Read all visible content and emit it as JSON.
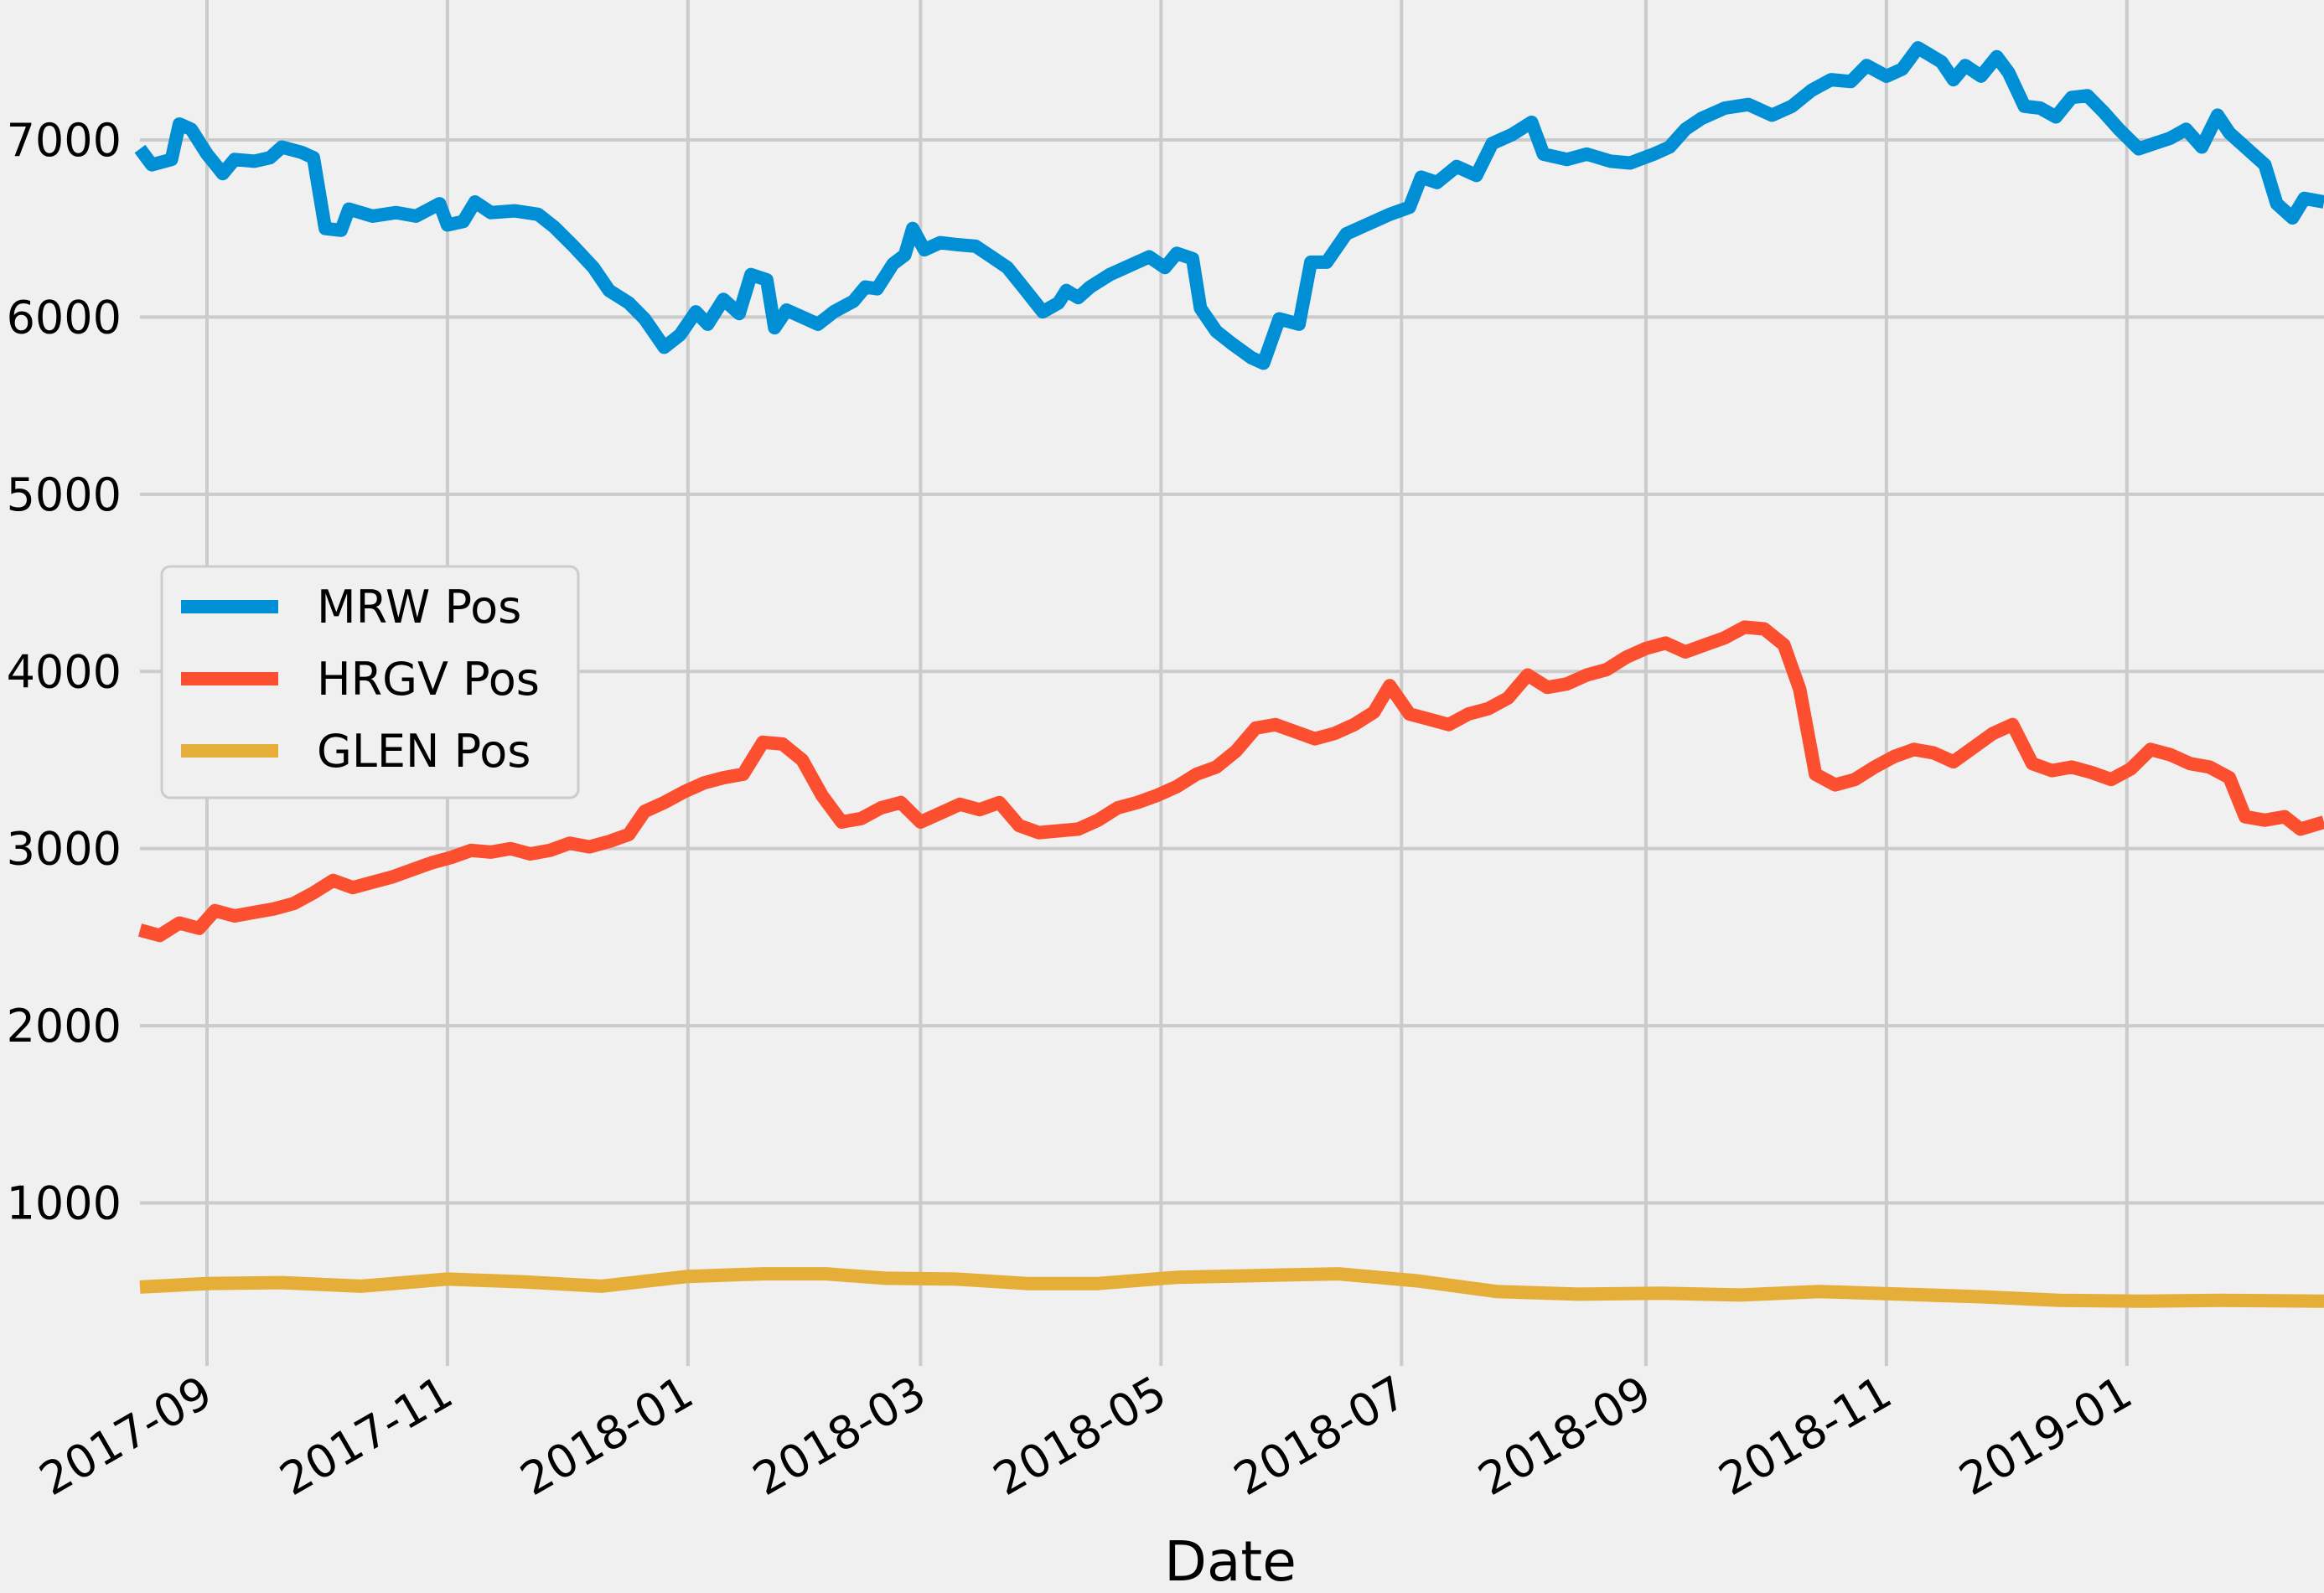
{
  "chart_data": {
    "type": "line",
    "xlabel": "Date",
    "ylabel": "",
    "ylim": [
      80,
      7790
    ],
    "xlim": [
      "2017-08-15",
      "2019-02-20"
    ],
    "grid": true,
    "legend_position": "center-left",
    "x_ticks": [
      "2017-09",
      "2017-11",
      "2018-01",
      "2018-03",
      "2018-05",
      "2018-07",
      "2018-09",
      "2018-11",
      "2019-01"
    ],
    "y_ticks": [
      1000,
      2000,
      3000,
      4000,
      5000,
      6000,
      7000
    ],
    "series": [
      {
        "name": "MRW Pos",
        "color": "#008fd5",
        "points": [
          [
            "2017-08-15",
            6950
          ],
          [
            "2017-08-18",
            6860
          ],
          [
            "2017-08-23",
            6890
          ],
          [
            "2017-08-25",
            7090
          ],
          [
            "2017-08-28",
            7060
          ],
          [
            "2017-09-01",
            6920
          ],
          [
            "2017-09-05",
            6810
          ],
          [
            "2017-09-08",
            6890
          ],
          [
            "2017-09-13",
            6880
          ],
          [
            "2017-09-17",
            6900
          ],
          [
            "2017-09-20",
            6960
          ],
          [
            "2017-09-25",
            6930
          ],
          [
            "2017-09-28",
            6900
          ],
          [
            "2017-10-01",
            6500
          ],
          [
            "2017-10-05",
            6490
          ],
          [
            "2017-10-07",
            6610
          ],
          [
            "2017-10-13",
            6570
          ],
          [
            "2017-10-19",
            6590
          ],
          [
            "2017-10-24",
            6570
          ],
          [
            "2017-10-30",
            6640
          ],
          [
            "2017-11-01",
            6520
          ],
          [
            "2017-11-05",
            6540
          ],
          [
            "2017-11-08",
            6650
          ],
          [
            "2017-11-12",
            6590
          ],
          [
            "2017-11-18",
            6600
          ],
          [
            "2017-11-24",
            6580
          ],
          [
            "2017-11-28",
            6510
          ],
          [
            "2017-12-03",
            6400
          ],
          [
            "2017-12-08",
            6280
          ],
          [
            "2017-12-12",
            6150
          ],
          [
            "2017-12-17",
            6080
          ],
          [
            "2017-12-21",
            5990
          ],
          [
            "2017-12-26",
            5830
          ],
          [
            "2017-12-30",
            5900
          ],
          [
            "2018-01-03",
            6030
          ],
          [
            "2018-01-06",
            5960
          ],
          [
            "2018-01-10",
            6100
          ],
          [
            "2018-01-14",
            6020
          ],
          [
            "2018-01-17",
            6240
          ],
          [
            "2018-01-21",
            6210
          ],
          [
            "2018-01-23",
            5940
          ],
          [
            "2018-01-26",
            6040
          ],
          [
            "2018-01-30",
            6000
          ],
          [
            "2018-02-03",
            5960
          ],
          [
            "2018-02-07",
            6030
          ],
          [
            "2018-02-12",
            6090
          ],
          [
            "2018-02-15",
            6170
          ],
          [
            "2018-02-18",
            6160
          ],
          [
            "2018-02-22",
            6300
          ],
          [
            "2018-02-25",
            6350
          ],
          [
            "2018-02-27",
            6500
          ],
          [
            "2018-03-02",
            6380
          ],
          [
            "2018-03-06",
            6420
          ],
          [
            "2018-03-10",
            6410
          ],
          [
            "2018-03-15",
            6400
          ],
          [
            "2018-03-19",
            6340
          ],
          [
            "2018-03-23",
            6280
          ],
          [
            "2018-03-27",
            6170
          ],
          [
            "2018-04-01",
            6030
          ],
          [
            "2018-04-05",
            6080
          ],
          [
            "2018-04-07",
            6150
          ],
          [
            "2018-04-10",
            6110
          ],
          [
            "2018-04-13",
            6170
          ],
          [
            "2018-04-18",
            6240
          ],
          [
            "2018-04-23",
            6290
          ],
          [
            "2018-04-28",
            6340
          ],
          [
            "2018-05-02",
            6280
          ],
          [
            "2018-05-05",
            6360
          ],
          [
            "2018-05-09",
            6330
          ],
          [
            "2018-05-11",
            6050
          ],
          [
            "2018-05-15",
            5920
          ],
          [
            "2018-05-19",
            5850
          ],
          [
            "2018-05-24",
            5770
          ],
          [
            "2018-05-27",
            5740
          ],
          [
            "2018-05-31",
            5990
          ],
          [
            "2018-06-05",
            5960
          ],
          [
            "2018-06-08",
            6310
          ],
          [
            "2018-06-12",
            6310
          ],
          [
            "2018-06-17",
            6470
          ],
          [
            "2018-06-22",
            6520
          ],
          [
            "2018-06-28",
            6580
          ],
          [
            "2018-07-03",
            6620
          ],
          [
            "2018-07-06",
            6790
          ],
          [
            "2018-07-10",
            6760
          ],
          [
            "2018-07-15",
            6850
          ],
          [
            "2018-07-20",
            6800
          ],
          [
            "2018-07-24",
            6980
          ],
          [
            "2018-07-29",
            7030
          ],
          [
            "2018-08-03",
            7100
          ],
          [
            "2018-08-06",
            6920
          ],
          [
            "2018-08-12",
            6890
          ],
          [
            "2018-08-17",
            6920
          ],
          [
            "2018-08-23",
            6880
          ],
          [
            "2018-08-28",
            6870
          ],
          [
            "2018-09-03",
            6920
          ],
          [
            "2018-09-07",
            6960
          ],
          [
            "2018-09-11",
            7060
          ],
          [
            "2018-09-15",
            7120
          ],
          [
            "2018-09-21",
            7180
          ],
          [
            "2018-09-27",
            7200
          ],
          [
            "2018-10-03",
            7140
          ],
          [
            "2018-10-08",
            7190
          ],
          [
            "2018-10-13",
            7280
          ],
          [
            "2018-10-18",
            7340
          ],
          [
            "2018-10-23",
            7330
          ],
          [
            "2018-10-27",
            7420
          ],
          [
            "2018-11-01",
            7360
          ],
          [
            "2018-11-05",
            7400
          ],
          [
            "2018-11-09",
            7520
          ],
          [
            "2018-11-12",
            7480
          ],
          [
            "2018-11-15",
            7440
          ],
          [
            "2018-11-18",
            7340
          ],
          [
            "2018-11-21",
            7420
          ],
          [
            "2018-11-25",
            7360
          ],
          [
            "2018-11-29",
            7470
          ],
          [
            "2018-12-02",
            7380
          ],
          [
            "2018-12-06",
            7190
          ],
          [
            "2018-12-10",
            7180
          ],
          [
            "2018-12-14",
            7130
          ],
          [
            "2018-12-18",
            7240
          ],
          [
            "2018-12-22",
            7250
          ],
          [
            "2018-12-26",
            7160
          ],
          [
            "2018-12-30",
            7060
          ],
          [
            "2019-01-04",
            6950
          ],
          [
            "2019-01-08",
            6980
          ],
          [
            "2019-01-12",
            7010
          ],
          [
            "2019-01-16",
            7060
          ],
          [
            "2019-01-20",
            6960
          ],
          [
            "2019-01-24",
            7140
          ],
          [
            "2019-01-27",
            7040
          ],
          [
            "2019-02-01",
            6940
          ],
          [
            "2019-02-05",
            6860
          ],
          [
            "2019-02-08",
            6640
          ],
          [
            "2019-02-12",
            6560
          ],
          [
            "2019-02-15",
            6670
          ],
          [
            "2019-02-20",
            6650
          ]
        ]
      },
      {
        "name": "HRGV Pos",
        "color": "#fc4f30",
        "points": [
          [
            "2017-08-15",
            2540
          ],
          [
            "2017-08-20",
            2510
          ],
          [
            "2017-08-25",
            2580
          ],
          [
            "2017-08-30",
            2550
          ],
          [
            "2017-09-03",
            2650
          ],
          [
            "2017-09-08",
            2620
          ],
          [
            "2017-09-13",
            2640
          ],
          [
            "2017-09-18",
            2660
          ],
          [
            "2017-09-23",
            2690
          ],
          [
            "2017-09-28",
            2750
          ],
          [
            "2017-10-03",
            2820
          ],
          [
            "2017-10-08",
            2780
          ],
          [
            "2017-10-13",
            2810
          ],
          [
            "2017-10-18",
            2840
          ],
          [
            "2017-10-23",
            2880
          ],
          [
            "2017-10-28",
            2920
          ],
          [
            "2017-11-02",
            2950
          ],
          [
            "2017-11-07",
            2990
          ],
          [
            "2017-11-12",
            2980
          ],
          [
            "2017-11-17",
            3000
          ],
          [
            "2017-11-22",
            2970
          ],
          [
            "2017-11-27",
            2990
          ],
          [
            "2017-12-02",
            3030
          ],
          [
            "2017-12-07",
            3010
          ],
          [
            "2017-12-12",
            3040
          ],
          [
            "2017-12-17",
            3080
          ],
          [
            "2017-12-21",
            3210
          ],
          [
            "2017-12-26",
            3260
          ],
          [
            "2017-12-31",
            3320
          ],
          [
            "2018-01-05",
            3370
          ],
          [
            "2018-01-10",
            3400
          ],
          [
            "2018-01-15",
            3420
          ],
          [
            "2018-01-20",
            3600
          ],
          [
            "2018-01-25",
            3590
          ],
          [
            "2018-01-30",
            3500
          ],
          [
            "2018-02-04",
            3300
          ],
          [
            "2018-02-09",
            3150
          ],
          [
            "2018-02-14",
            3170
          ],
          [
            "2018-02-19",
            3230
          ],
          [
            "2018-02-24",
            3260
          ],
          [
            "2018-03-01",
            3150
          ],
          [
            "2018-03-06",
            3200
          ],
          [
            "2018-03-11",
            3250
          ],
          [
            "2018-03-16",
            3220
          ],
          [
            "2018-03-21",
            3260
          ],
          [
            "2018-03-26",
            3130
          ],
          [
            "2018-03-31",
            3090
          ],
          [
            "2018-04-05",
            3100
          ],
          [
            "2018-04-10",
            3110
          ],
          [
            "2018-04-15",
            3160
          ],
          [
            "2018-04-20",
            3230
          ],
          [
            "2018-04-25",
            3260
          ],
          [
            "2018-04-30",
            3300
          ],
          [
            "2018-05-05",
            3350
          ],
          [
            "2018-05-10",
            3420
          ],
          [
            "2018-05-15",
            3460
          ],
          [
            "2018-05-20",
            3550
          ],
          [
            "2018-05-25",
            3680
          ],
          [
            "2018-05-30",
            3700
          ],
          [
            "2018-06-04",
            3660
          ],
          [
            "2018-06-09",
            3620
          ],
          [
            "2018-06-14",
            3650
          ],
          [
            "2018-06-19",
            3700
          ],
          [
            "2018-06-24",
            3770
          ],
          [
            "2018-06-28",
            3920
          ],
          [
            "2018-07-03",
            3760
          ],
          [
            "2018-07-08",
            3730
          ],
          [
            "2018-07-13",
            3700
          ],
          [
            "2018-07-18",
            3760
          ],
          [
            "2018-07-23",
            3790
          ],
          [
            "2018-07-28",
            3850
          ],
          [
            "2018-08-02",
            3980
          ],
          [
            "2018-08-07",
            3910
          ],
          [
            "2018-08-12",
            3930
          ],
          [
            "2018-08-17",
            3980
          ],
          [
            "2018-08-22",
            4010
          ],
          [
            "2018-08-27",
            4080
          ],
          [
            "2018-09-01",
            4130
          ],
          [
            "2018-09-06",
            4160
          ],
          [
            "2018-09-11",
            4110
          ],
          [
            "2018-09-16",
            4150
          ],
          [
            "2018-09-21",
            4190
          ],
          [
            "2018-09-26",
            4250
          ],
          [
            "2018-10-01",
            4240
          ],
          [
            "2018-10-06",
            4150
          ],
          [
            "2018-10-10",
            3900
          ],
          [
            "2018-10-14",
            3420
          ],
          [
            "2018-10-19",
            3360
          ],
          [
            "2018-10-24",
            3390
          ],
          [
            "2018-10-29",
            3460
          ],
          [
            "2018-11-03",
            3520
          ],
          [
            "2018-11-08",
            3560
          ],
          [
            "2018-11-13",
            3540
          ],
          [
            "2018-11-18",
            3490
          ],
          [
            "2018-11-23",
            3570
          ],
          [
            "2018-11-28",
            3650
          ],
          [
            "2018-12-03",
            3700
          ],
          [
            "2018-12-08",
            3480
          ],
          [
            "2018-12-13",
            3440
          ],
          [
            "2018-12-18",
            3460
          ],
          [
            "2018-12-23",
            3430
          ],
          [
            "2018-12-28",
            3390
          ],
          [
            "2019-01-02",
            3450
          ],
          [
            "2019-01-07",
            3560
          ],
          [
            "2019-01-12",
            3530
          ],
          [
            "2019-01-17",
            3480
          ],
          [
            "2019-01-22",
            3460
          ],
          [
            "2019-01-27",
            3400
          ],
          [
            "2019-01-31",
            3180
          ],
          [
            "2019-02-05",
            3160
          ],
          [
            "2019-02-10",
            3180
          ],
          [
            "2019-02-14",
            3110
          ],
          [
            "2019-02-20",
            3150
          ]
        ]
      },
      {
        "name": "GLEN Pos",
        "color": "#e5ae38",
        "points": [
          [
            "2017-08-15",
            525
          ],
          [
            "2017-09-01",
            545
          ],
          [
            "2017-09-20",
            550
          ],
          [
            "2017-10-10",
            530
          ],
          [
            "2017-11-01",
            570
          ],
          [
            "2017-11-20",
            555
          ],
          [
            "2017-12-10",
            530
          ],
          [
            "2018-01-01",
            585
          ],
          [
            "2018-01-20",
            600
          ],
          [
            "2018-02-05",
            600
          ],
          [
            "2018-02-20",
            575
          ],
          [
            "2018-03-10",
            570
          ],
          [
            "2018-03-28",
            545
          ],
          [
            "2018-04-15",
            545
          ],
          [
            "2018-05-05",
            580
          ],
          [
            "2018-05-25",
            590
          ],
          [
            "2018-06-15",
            600
          ],
          [
            "2018-07-05",
            560
          ],
          [
            "2018-07-25",
            500
          ],
          [
            "2018-08-15",
            485
          ],
          [
            "2018-09-05",
            490
          ],
          [
            "2018-09-25",
            480
          ],
          [
            "2018-10-15",
            500
          ],
          [
            "2018-11-05",
            485
          ],
          [
            "2018-11-25",
            470
          ],
          [
            "2018-12-15",
            450
          ],
          [
            "2019-01-05",
            445
          ],
          [
            "2019-01-25",
            450
          ],
          [
            "2019-02-20",
            445
          ]
        ]
      }
    ]
  }
}
